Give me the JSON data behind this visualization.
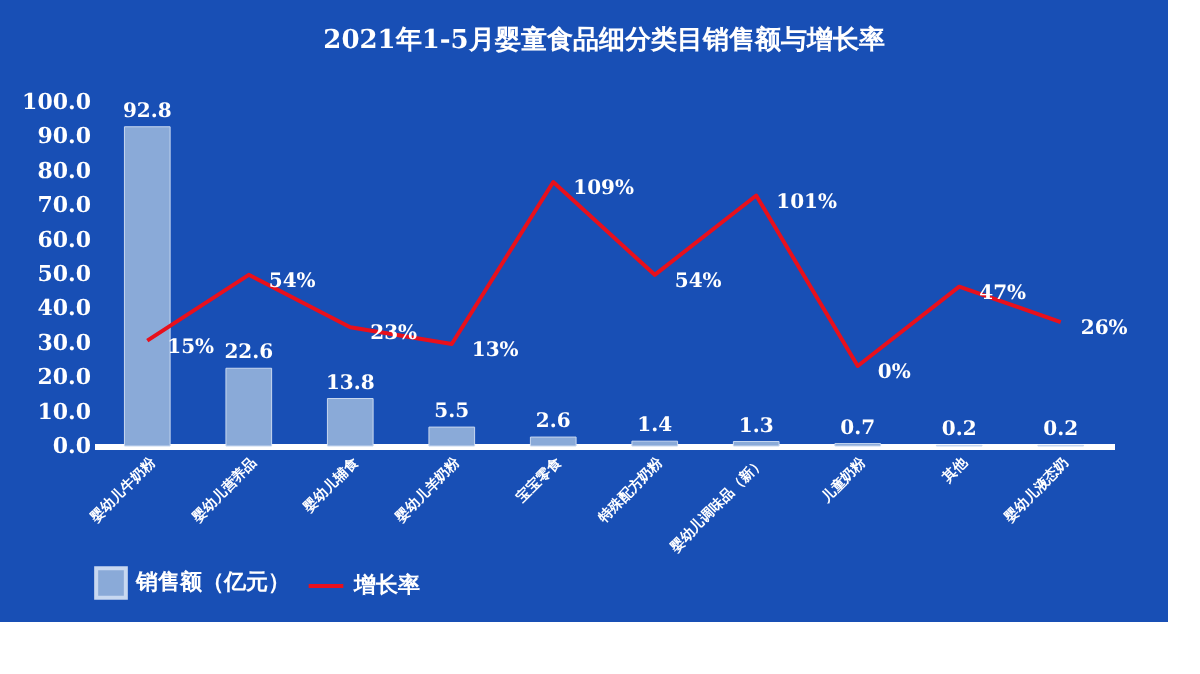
{
  "chart_data": {
    "type": "bar",
    "title": "2021年1-5月婴童食品细分类目销售额与增长率",
    "categories": [
      "婴幼儿牛奶粉",
      "婴幼儿营养品",
      "婴幼儿辅食",
      "婴幼儿羊奶粉",
      "宝宝零食",
      "特殊配方奶粉",
      "婴幼儿调味品（新）",
      "儿童奶粉",
      "其他",
      "婴幼儿液态奶"
    ],
    "series": [
      {
        "name": "销售额（亿元）",
        "color": "#8aaad8",
        "values": [
          92.8,
          22.6,
          13.8,
          5.5,
          2.6,
          1.4,
          1.3,
          0.7,
          0.2,
          0.2
        ]
      },
      {
        "name": "增长率",
        "type": "line",
        "axis": "y2",
        "color": "#e8101c",
        "values": [
          15,
          54,
          23,
          13,
          109,
          54,
          101,
          0,
          47,
          26
        ],
        "value_labels": [
          "15%",
          "54%",
          "23%",
          "13%",
          "109%",
          "54%",
          "101%",
          "0%",
          "47%",
          "26%"
        ]
      }
    ],
    "ylim": [
      0,
      100
    ],
    "yticks": [
      {
        "value": 0,
        "label": "0.0"
      },
      {
        "value": 10,
        "label": "10.0"
      },
      {
        "value": 20,
        "label": "20.0"
      },
      {
        "value": 30,
        "label": "30.0"
      },
      {
        "value": 40,
        "label": "40.0"
      },
      {
        "value": 50,
        "label": "50.0"
      },
      {
        "value": 60,
        "label": "60.0"
      },
      {
        "value": 70,
        "label": "70.0"
      },
      {
        "value": 80,
        "label": "80.0"
      },
      {
        "value": 90,
        "label": "90.0"
      },
      {
        "value": 100,
        "label": "100.0"
      }
    ],
    "data_labels": true,
    "grid": false,
    "legend": "bottom",
    "tick_labels": "xy"
  }
}
